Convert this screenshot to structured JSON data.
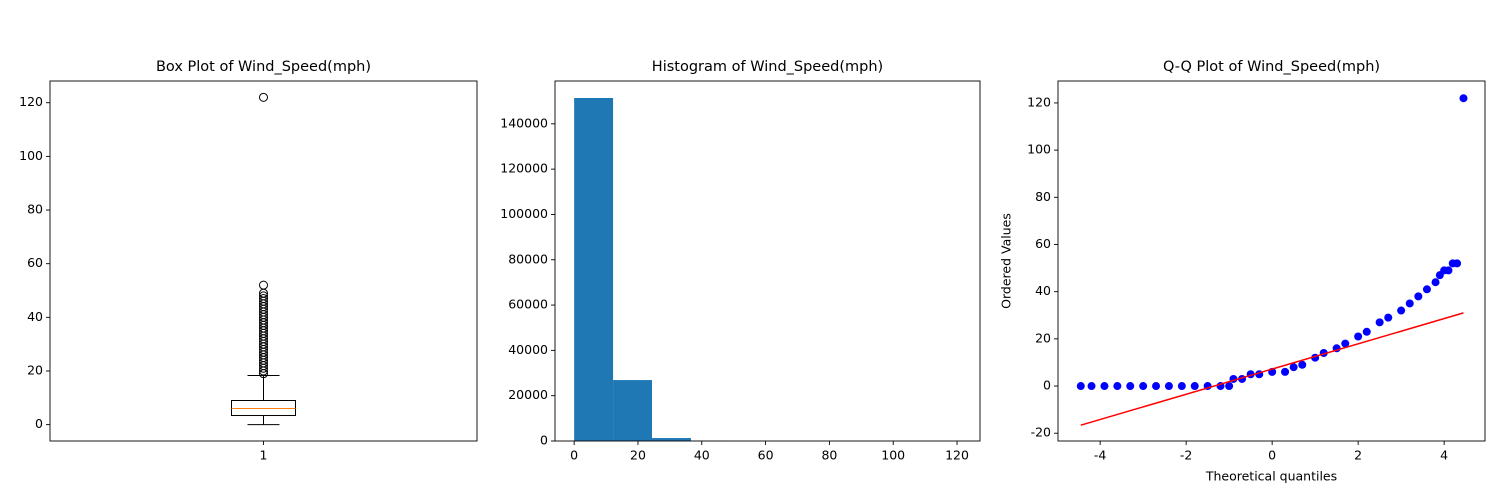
{
  "chart_data": [
    {
      "type": "box",
      "title": "Box Plot of Wind_Speed(mph)",
      "xlim": [
        0.5,
        1.5
      ],
      "xticks": [
        1
      ],
      "ylim": [
        -6.1,
        128.1
      ],
      "yticks": [
        0,
        20,
        40,
        60,
        80,
        100,
        120
      ],
      "whislo": 0,
      "q1": 3.4,
      "median": 6,
      "q3": 9,
      "whishi": 18.3,
      "outliers": [
        19,
        20,
        21,
        22,
        23,
        24,
        25,
        26,
        27,
        28,
        29,
        30,
        31,
        32,
        33,
        34,
        35,
        36,
        37,
        38,
        39,
        40,
        41,
        42,
        43,
        44,
        45,
        46,
        47,
        48,
        49,
        52,
        122
      ],
      "box_color": "#000000",
      "median_color": "#ff7f0e"
    },
    {
      "type": "histogram",
      "title": "Histogram of Wind_Speed(mph)",
      "bins": [
        0,
        12.2,
        24.4,
        36.6,
        48.8,
        61,
        73.2,
        85.4,
        97.6,
        109.8,
        122
      ],
      "counts": [
        151400,
        26900,
        1300,
        100,
        10,
        0,
        0,
        0,
        0,
        1
      ],
      "color": "#1f77b4",
      "xlim": [
        -6.0,
        127.2
      ],
      "xticks": [
        0,
        20,
        40,
        60,
        80,
        100,
        120
      ],
      "ylim": [
        0,
        158900
      ],
      "yticks": [
        0,
        20000,
        40000,
        60000,
        80000,
        100000,
        120000,
        140000
      ]
    },
    {
      "type": "scatter",
      "title": "Q-Q Plot of Wind_Speed(mph)",
      "x_label": "Theoretical quantiles",
      "y_label": "Ordered Values",
      "xlim": [
        -4.98,
        4.95
      ],
      "xticks": [
        -4,
        -2,
        0,
        2,
        4
      ],
      "ylim": [
        -23.3,
        129.3
      ],
      "yticks": [
        -20,
        0,
        20,
        40,
        60,
        80,
        100,
        120
      ],
      "color": "#0000ff",
      "x": [
        -4.45,
        -4.2,
        -3.9,
        -3.6,
        -3.3,
        -3.0,
        -2.7,
        -2.4,
        -2.1,
        -1.8,
        -1.5,
        -1.2,
        -1.0,
        -0.9,
        -0.7,
        -0.5,
        -0.3,
        0,
        0.3,
        0.5,
        0.7,
        1.0,
        1.2,
        1.5,
        1.7,
        2.0,
        2.2,
        2.5,
        2.7,
        3.0,
        3.2,
        3.4,
        3.6,
        3.8,
        3.9,
        4.0,
        4.1,
        4.2,
        4.3,
        4.45
      ],
      "y": [
        0,
        0,
        0,
        0,
        0,
        0,
        0,
        0,
        0,
        0,
        0,
        0,
        0,
        3,
        3,
        5,
        5,
        6,
        6,
        8,
        9,
        12,
        14,
        16,
        18,
        21,
        23,
        27,
        29,
        32,
        35,
        38,
        41,
        44,
        47,
        49,
        49,
        52,
        52,
        122
      ],
      "fit_line": {
        "x": [
          -4.45,
          4.45
        ],
        "y": [
          -16.6,
          31
        ],
        "color": "#ff0000"
      }
    }
  ]
}
